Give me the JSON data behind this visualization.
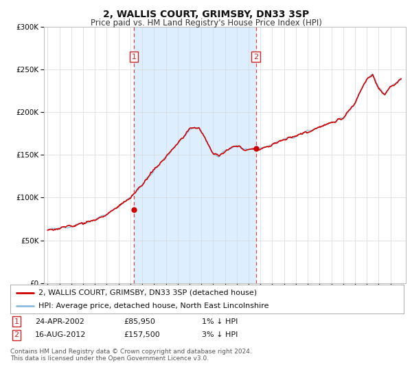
{
  "title": "2, WALLIS COURT, GRIMSBY, DN33 3SP",
  "subtitle": "Price paid vs. HM Land Registry's House Price Index (HPI)",
  "ylim": [
    0,
    300000
  ],
  "yticks": [
    0,
    50000,
    100000,
    150000,
    200000,
    250000,
    300000
  ],
  "ytick_labels": [
    "£0",
    "£50K",
    "£100K",
    "£150K",
    "£200K",
    "£250K",
    "£300K"
  ],
  "xlim_start": 1994.7,
  "xlim_end": 2025.3,
  "background_color": "#ffffff",
  "plot_bg_color": "#ffffff",
  "grid_color": "#d8d8d8",
  "shaded_region": [
    2002.31,
    2012.62
  ],
  "shaded_color": "#ddeeff",
  "sale1_x": 2002.31,
  "sale1_y": 85950,
  "sale2_x": 2012.62,
  "sale2_y": 157500,
  "sale1_label": "1",
  "sale2_label": "2",
  "vline_color": "#dd4444",
  "dot_color": "#cc0000",
  "legend_color1": "#cc0000",
  "legend_color2": "#88bbdd",
  "legend_line1": "2, WALLIS COURT, GRIMSBY, DN33 3SP (detached house)",
  "legend_line2": "HPI: Average price, detached house, North East Lincolnshire",
  "table_row1": [
    "1",
    "24-APR-2002",
    "£85,950",
    "1% ↓ HPI"
  ],
  "table_row2": [
    "2",
    "16-AUG-2012",
    "£157,500",
    "3% ↓ HPI"
  ],
  "footer": "Contains HM Land Registry data © Crown copyright and database right 2024.\nThis data is licensed under the Open Government Licence v3.0.",
  "title_fontsize": 10,
  "subtitle_fontsize": 8.5,
  "tick_fontsize": 7.5,
  "legend_fontsize": 8.0,
  "table_fontsize": 8.0,
  "footer_fontsize": 6.5
}
